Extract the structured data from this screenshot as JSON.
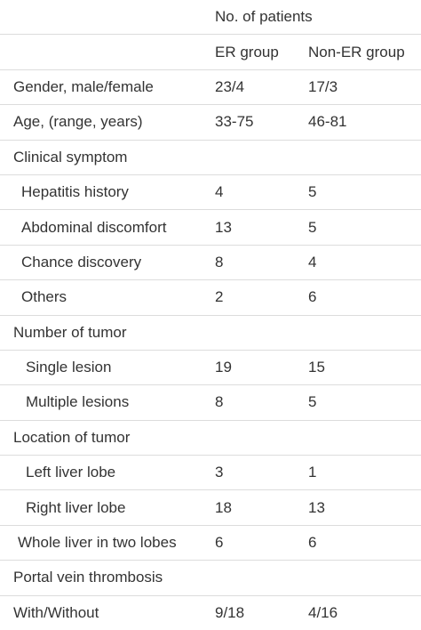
{
  "header": {
    "group_title": "No. of patients",
    "col_er": "ER group",
    "col_non_er": "Non-ER group"
  },
  "rows": [
    {
      "label": "Gender, male/female",
      "er": "23/4",
      "non_er": "17/3"
    },
    {
      "label": "Age, (range, years)",
      "er": "33-75",
      "non_er": "46-81"
    },
    {
      "label": "Clinical symptom",
      "er": "",
      "non_er": ""
    },
    {
      "label": "Hepatitis history",
      "er": "4",
      "non_er": "5"
    },
    {
      "label": "Abdominal discomfort",
      "er": "13",
      "non_er": "5"
    },
    {
      "label": "Chance discovery",
      "er": "8",
      "non_er": "4"
    },
    {
      "label": "Others",
      "er": "2",
      "non_er": "6"
    },
    {
      "label": "Number of tumor",
      "er": "",
      "non_er": ""
    },
    {
      "label": "Single lesion",
      "er": "19",
      "non_er": "15"
    },
    {
      "label": "Multiple lesions",
      "er": "8",
      "non_er": "5"
    },
    {
      "label": "Location of tumor",
      "er": "",
      "non_er": ""
    },
    {
      "label": "Left liver lobe",
      "er": "3",
      "non_er": "1"
    },
    {
      "label": "Right liver lobe",
      "er": "18",
      "non_er": "13"
    },
    {
      "label": "Whole liver in two lobes",
      "er": "6",
      "non_er": "6"
    },
    {
      "label": "Portal vein thrombosis",
      "er": "",
      "non_er": ""
    },
    {
      "label": "With/Without",
      "er": "9/18",
      "non_er": "4/16"
    }
  ]
}
